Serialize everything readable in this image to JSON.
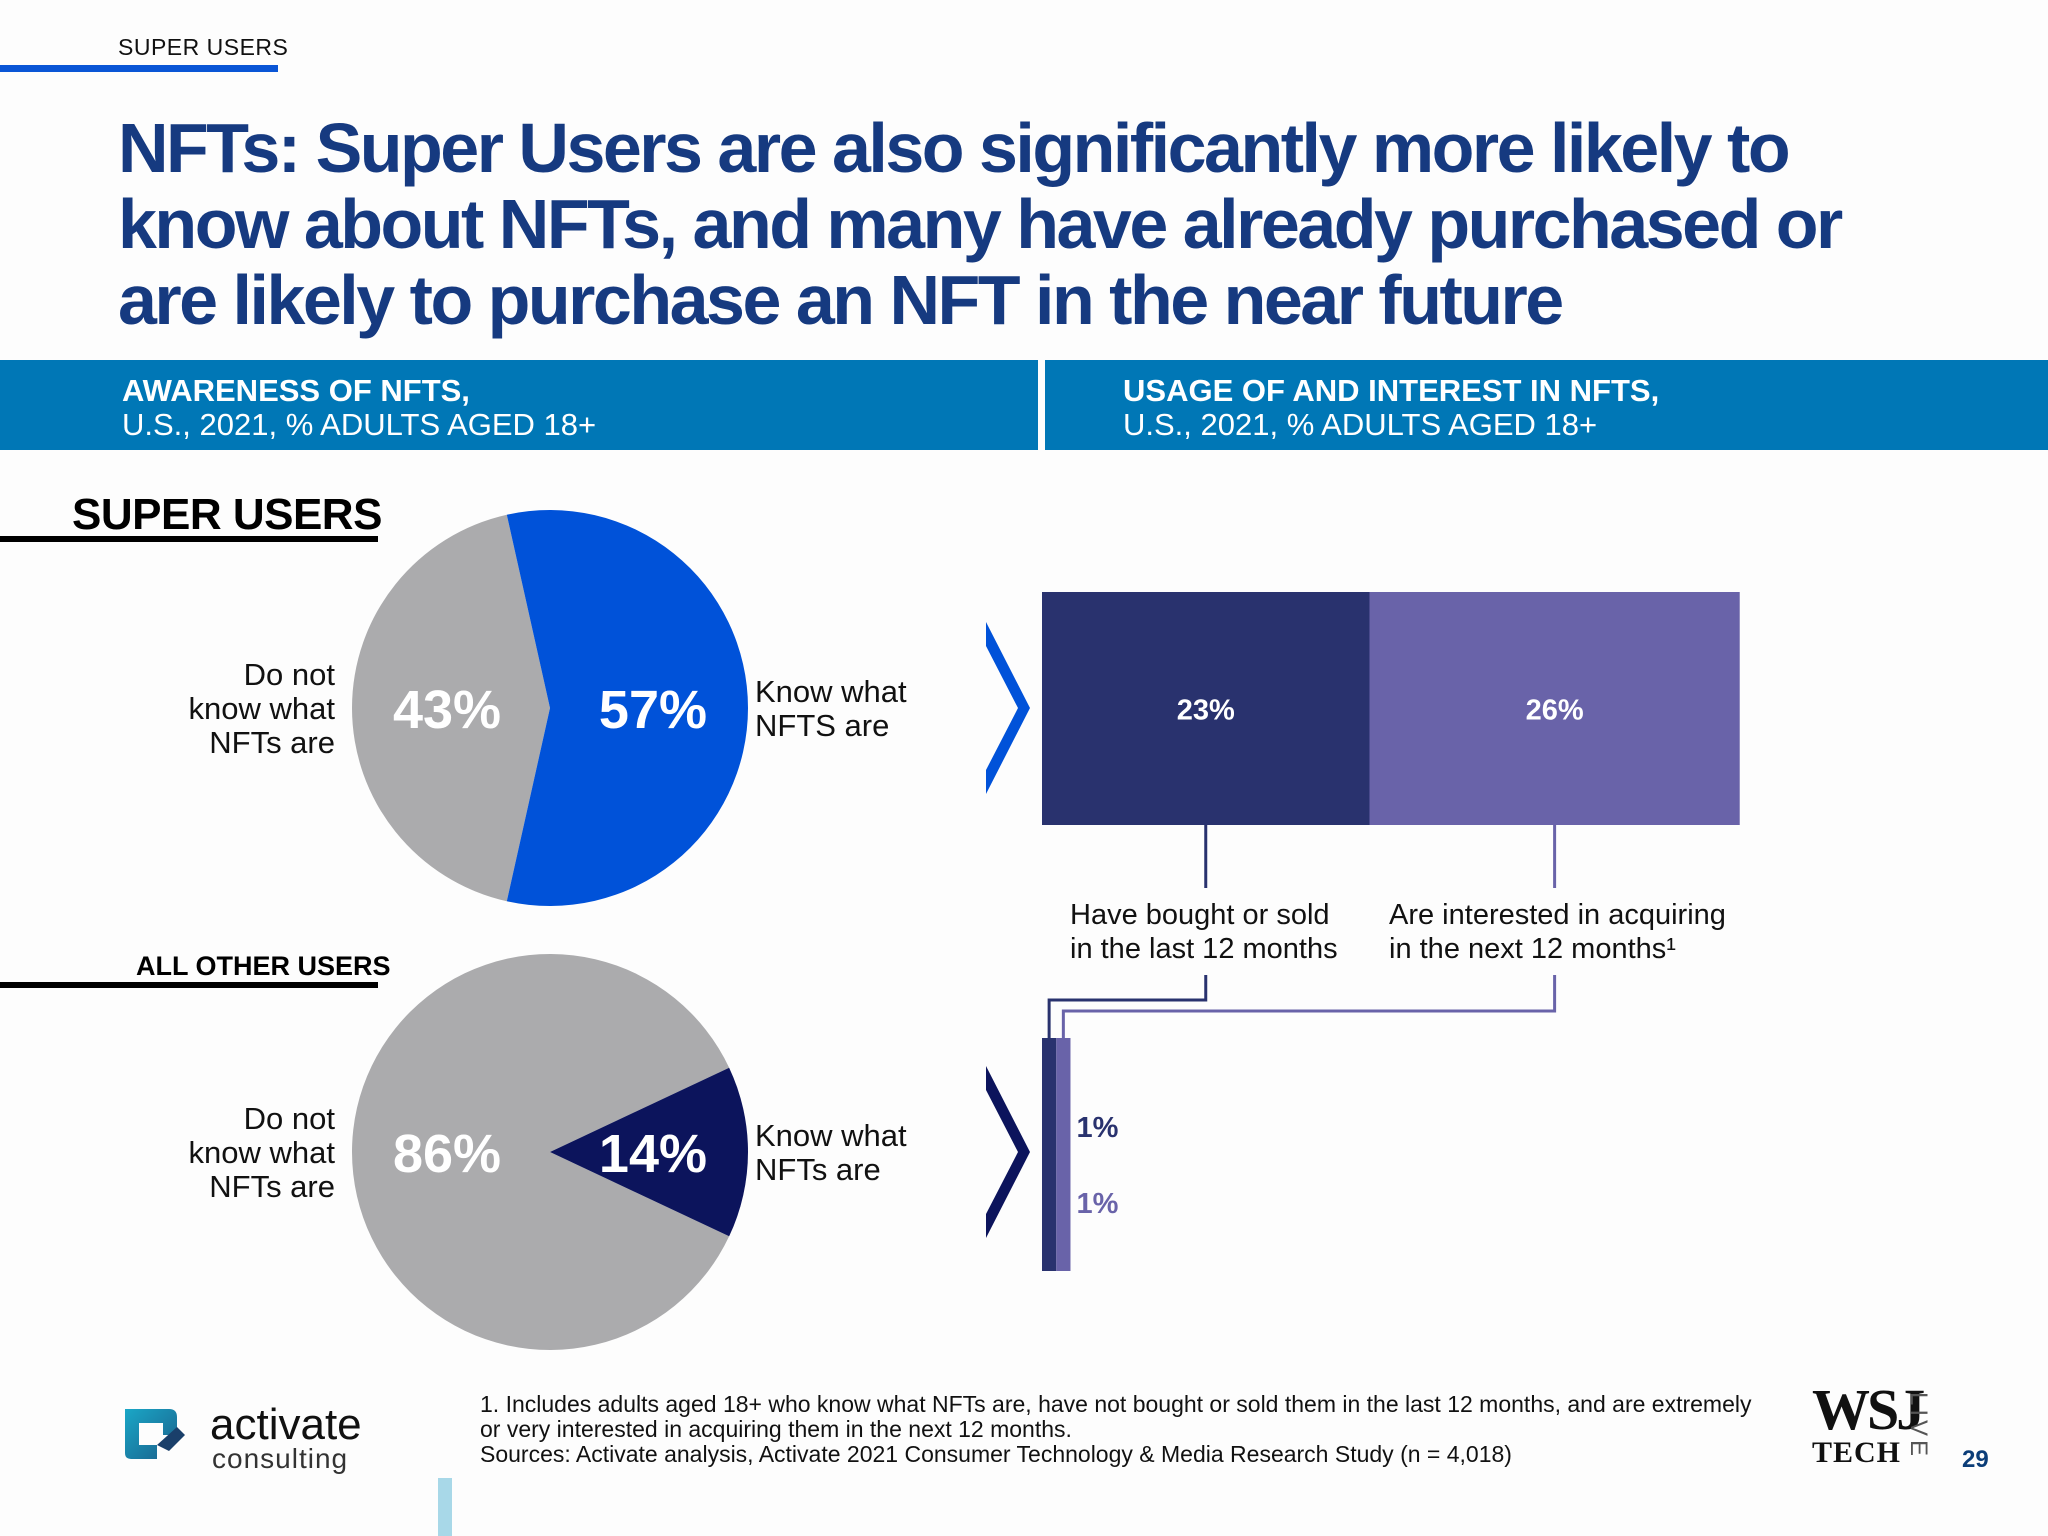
{
  "header": {
    "section_tag": "SUPER USERS",
    "title": "NFTs: Super Users are also significantly more likely to know about NFTs, and many have already purchased or are likely to purchase an NFT in the near future"
  },
  "left_panel": {
    "title": "AWARENESS OF NFTS,",
    "subtitle": "U.S., 2021, % ADULTS AGED 18+"
  },
  "right_panel": {
    "title": "USAGE OF AND INTEREST IN NFTS,",
    "subtitle": "U.S., 2021, % ADULTS AGED 18+"
  },
  "colors": {
    "know_super": "#0052d9",
    "know_other": "#0c145c",
    "dont_know": "#ababad",
    "bought": "#29326e",
    "interested": "#6963a9",
    "band": "#0077b6",
    "headline": "#163a80"
  },
  "chart_data": [
    {
      "type": "pie",
      "group": "SUPER USERS",
      "slices": [
        {
          "label": "Know what NFTS are",
          "value": 57,
          "display": "57%"
        },
        {
          "label": "Do not know what NFTs are",
          "value": 43,
          "display": "43%"
        }
      ]
    },
    {
      "type": "pie",
      "group": "ALL OTHER USERS",
      "slices": [
        {
          "label": "Know what NFTs are",
          "value": 14,
          "display": "14%"
        },
        {
          "label": "Do not know what NFTs are",
          "value": 86,
          "display": "86%"
        }
      ]
    },
    {
      "type": "bar",
      "orientation": "stacked-horizontal",
      "categories": [
        "SUPER USERS",
        "ALL OTHER USERS"
      ],
      "series": [
        {
          "name": "Have bought or sold in the last 12 months",
          "values": [
            23,
            1
          ],
          "labels": [
            "23%",
            "1%"
          ]
        },
        {
          "name": "Are interested in acquiring in the next 12 months¹",
          "values": [
            26,
            1
          ],
          "labels": [
            "26%",
            "1%"
          ]
        }
      ]
    }
  ],
  "pie_labels": {
    "super_know": [
      "Know what",
      "NFTS are"
    ],
    "super_dont": [
      "Do not",
      "know what",
      "NFTs are"
    ],
    "other_know": [
      "Know what",
      "NFTs are"
    ],
    "other_dont": [
      "Do not",
      "know what",
      "NFTs are"
    ]
  },
  "captions": {
    "bought": [
      "Have bought or sold",
      "in the last 12 months"
    ],
    "interested": [
      "Are interested in acquiring",
      "in the next 12 months¹"
    ]
  },
  "footer": {
    "note_1": "1. Includes adults aged 18+ who know what NFTs are, have not bought or sold them in the last 12 months, and are extremely",
    "note_2": "or very interested in acquiring them in the next 12 months.",
    "sources": "Sources: Activate analysis, Activate 2021 Consumer Technology & Media Research Study (n = 4,018)",
    "logo_word": "activate",
    "logo_sub": "consulting",
    "wsj_main": "WSJ",
    "wsj_tech": "TECH",
    "wsj_live": "LIVE",
    "page_number": "29"
  }
}
